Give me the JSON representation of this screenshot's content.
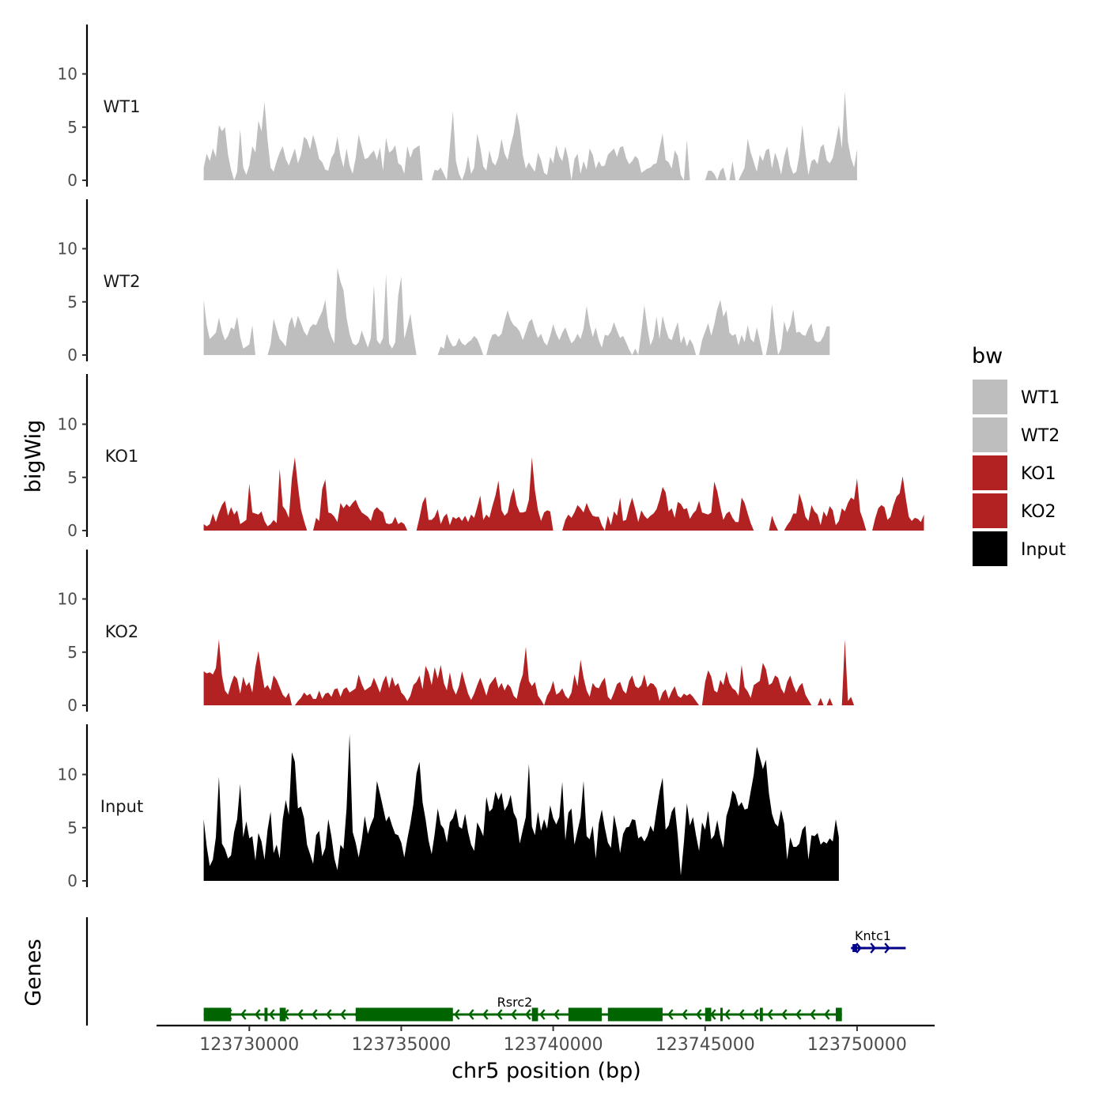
{
  "chart_data": {
    "type": "area",
    "title": "",
    "ylabel": "bigWig",
    "genes_label": "Genes",
    "xlabel": "chr5 position (bp)",
    "xlim": [
      123727000,
      123752500
    ],
    "x_ticks": [
      "123730000",
      "123735000",
      "123740000",
      "123745000",
      "123750000"
    ],
    "x_tick_values": [
      123730000,
      123735000,
      123740000,
      123745000,
      123750000
    ],
    "ylim": [
      0,
      14
    ],
    "y_ticks": [
      "0",
      "5",
      "10"
    ],
    "y_tick_values": [
      0,
      5,
      10
    ],
    "data_start": 123728500,
    "data_step": 100,
    "tracks": [
      {
        "name": "WT1",
        "color": "#bebebe",
        "values": [
          1.2,
          2.5,
          1.8,
          3.0,
          2.2,
          5.2,
          4.6,
          5.0,
          2.4,
          1.0,
          0.0,
          0.8,
          4.8,
          1.2,
          0.5,
          1.4,
          3.2,
          2.6,
          5.6,
          4.6,
          7.4,
          3.8,
          1.2,
          0.8,
          1.8,
          2.6,
          3.2,
          2.0,
          1.4,
          2.2,
          3.0,
          1.6,
          2.4,
          4.1,
          3.8,
          2.9,
          4.3,
          3.3,
          2.0,
          1.7,
          1.0,
          0.9,
          2.1,
          2.6,
          4.1,
          2.3,
          1.2,
          3.0,
          1.4,
          0.6,
          2.1,
          4.3,
          3.1,
          2.0,
          2.1,
          2.5,
          2.8,
          1.9,
          3.1,
          0.9,
          4.0,
          2.6,
          2.8,
          3.3,
          1.6,
          1.4,
          0.6,
          3.2,
          2.1,
          2.9,
          3.1,
          3.3,
          0.0,
          0.0,
          0.0,
          0.0,
          1.0,
          0.9,
          1.2,
          0.6,
          0.0,
          3.2,
          6.5,
          1.8,
          0.6,
          0.0,
          0.8,
          2.3,
          0.6,
          1.2,
          4.4,
          3.1,
          1.3,
          0.9,
          2.8,
          1.7,
          1.4,
          2.2,
          3.9,
          2.5,
          1.9,
          3.3,
          4.4,
          6.4,
          5.0,
          2.4,
          1.1,
          1.7,
          1.2,
          0.8,
          2.6,
          1.9,
          0.7,
          0.5,
          2.2,
          1.6,
          3.3,
          2.3,
          1.8,
          3.2,
          2.0,
          0.0,
          2.0,
          2.5,
          0.6,
          1.8,
          1.0,
          3.0,
          2.4,
          1.1,
          1.8,
          1.3,
          1.4,
          2.4,
          2.7,
          3.0,
          2.2,
          3.1,
          3.2,
          2.1,
          1.5,
          1.8,
          2.3,
          2.0,
          0.7,
          0.9,
          1.1,
          1.2,
          1.5,
          1.6,
          3.0,
          4.4,
          1.9,
          1.7,
          1.1,
          2.8,
          2.3,
          0.5,
          0.0,
          3.8,
          0.0,
          0.0,
          0.0,
          0.0,
          0.0,
          0.0,
          0.9,
          0.9,
          0.6,
          0.0,
          0.9,
          1.2,
          0.0,
          0.0,
          1.8,
          0.0,
          0.0,
          0.6,
          1.2,
          3.9,
          2.6,
          1.7,
          0.8,
          2.4,
          1.8,
          2.8,
          3.0,
          1.1,
          2.6,
          1.8,
          0.5,
          2.2,
          3.2,
          1.4,
          0.6,
          0.8,
          2.4,
          5.2,
          2.6,
          0.5,
          1.8,
          2.0,
          1.5,
          3.1,
          3.4,
          1.9,
          1.6,
          2.1,
          3.6,
          5.2,
          3.0,
          8.4,
          3.6,
          2.1,
          1.2,
          2.9
        ]
      },
      {
        "name": "WT2",
        "color": "#bebebe",
        "values": [
          5.2,
          2.8,
          1.5,
          1.8,
          2.1,
          3.5,
          2.2,
          1.4,
          1.8,
          2.6,
          2.4,
          3.6,
          1.7,
          0.6,
          0.8,
          1.0,
          2.8,
          0.0,
          0.0,
          0.0,
          0.0,
          0.0,
          1.0,
          3.4,
          2.4,
          1.5,
          1.2,
          0.8,
          2.9,
          3.6,
          2.5,
          3.7,
          3.0,
          2.2,
          1.8,
          2.6,
          2.9,
          2.8,
          3.5,
          4.1,
          5.2,
          2.6,
          1.7,
          1.1,
          8.2,
          6.9,
          6.1,
          3.5,
          2.0,
          1.1,
          0.9,
          1.2,
          2.3,
          1.5,
          0.7,
          1.6,
          6.6,
          1.4,
          1.0,
          1.6,
          7.6,
          1.1,
          0.6,
          1.2,
          5.6,
          7.4,
          1.5,
          2.6,
          3.9,
          1.8,
          0.0,
          0.0,
          0.0,
          0.0,
          0.0,
          0.0,
          0.0,
          0.0,
          0.8,
          0.6,
          2.0,
          1.3,
          0.8,
          0.9,
          1.6,
          1.1,
          0.9,
          1.2,
          1.4,
          1.8,
          1.5,
          0.8,
          0.0,
          0.0,
          1.2,
          1.9,
          2.0,
          1.7,
          2.0,
          3.2,
          4.2,
          3.3,
          2.8,
          2.6,
          2.2,
          1.4,
          2.2,
          3.1,
          3.4,
          2.4,
          1.6,
          2.0,
          1.2,
          0.9,
          1.8,
          2.9,
          2.0,
          1.4,
          2.1,
          2.6,
          1.8,
          1.1,
          1.4,
          2.0,
          1.5,
          2.5,
          4.6,
          2.9,
          1.7,
          2.6,
          1.4,
          0.7,
          1.9,
          1.8,
          2.2,
          3.1,
          2.3,
          1.6,
          1.8,
          1.2,
          0.5,
          0.0,
          0.6,
          0.0,
          2.2,
          4.7,
          2.6,
          0.9,
          1.6,
          3.6,
          1.5,
          3.7,
          2.5,
          1.6,
          1.4,
          2.3,
          3.1,
          1.1,
          1.8,
          0.8,
          1.5,
          1.0,
          0.0,
          0.0,
          1.4,
          2.2,
          3.0,
          1.8,
          2.9,
          4.3,
          5.2,
          3.6,
          4.2,
          2.1,
          1.8,
          2.0,
          0.9,
          1.9,
          1.2,
          2.8,
          1.5,
          1.2,
          2.6,
          1.4,
          0.0,
          0.0,
          1.5,
          4.8,
          2.1,
          0.0,
          0.6,
          3.2,
          2.1,
          2.8,
          4.3,
          2.1,
          2.2,
          1.9,
          1.8,
          2.5,
          3.0,
          1.4,
          1.2,
          1.3,
          1.8,
          2.7,
          2.7
        ]
      },
      {
        "name": "KO1",
        "color": "#b22222",
        "values": [
          0.6,
          0.4,
          0.6,
          1.6,
          0.8,
          1.7,
          2.4,
          2.8,
          1.4,
          2.2,
          1.5,
          1.9,
          0.6,
          0.8,
          1.0,
          4.4,
          1.7,
          1.6,
          1.5,
          1.8,
          0.9,
          0.4,
          0.6,
          1.0,
          0.7,
          5.8,
          2.3,
          1.9,
          1.2,
          4.9,
          6.9,
          4.2,
          2.0,
          0.9,
          0.0,
          0.0,
          0.0,
          1.2,
          0.9,
          3.9,
          4.8,
          1.7,
          1.6,
          1.3,
          0.8,
          2.6,
          2.1,
          2.5,
          2.2,
          2.6,
          2.9,
          2.2,
          1.7,
          1.5,
          1.3,
          0.9,
          1.9,
          2.2,
          1.9,
          1.7,
          0.7,
          0.6,
          0.7,
          1.3,
          0.6,
          0.8,
          0.6,
          0.0,
          0.0,
          0.0,
          0.0,
          1.2,
          2.6,
          3.2,
          1.0,
          1.0,
          1.3,
          2.0,
          0.6,
          1.3,
          1.6,
          0.5,
          1.3,
          1.1,
          1.3,
          0.9,
          1.4,
          0.8,
          1.5,
          1.2,
          2.2,
          3.3,
          1.0,
          1.5,
          1.2,
          2.3,
          3.3,
          4.7,
          1.9,
          1.4,
          1.7,
          3.1,
          4.0,
          2.4,
          1.7,
          1.7,
          1.8,
          2.9,
          6.9,
          3.8,
          1.9,
          0.9,
          1.7,
          1.9,
          1.8,
          0.0,
          0.0,
          0.0,
          0.0,
          1.0,
          1.5,
          1.2,
          1.7,
          2.4,
          2.1,
          1.7,
          2.6,
          1.9,
          1.4,
          1.3,
          1.3,
          0.5,
          0.0,
          1.4,
          0.5,
          1.8,
          1.4,
          3.1,
          0.9,
          1.0,
          2.2,
          3.1,
          2.0,
          0.8,
          1.9,
          1.4,
          1.1,
          1.4,
          1.6,
          2.0,
          2.9,
          4.1,
          3.6,
          1.8,
          2.1,
          1.2,
          2.7,
          2.5,
          2.0,
          2.1,
          1.1,
          1.6,
          1.9,
          2.8,
          1.7,
          1.6,
          1.5,
          1.7,
          4.6,
          3.7,
          2.2,
          1.0,
          1.6,
          1.8,
          1.2,
          0.8,
          0.8,
          3.1,
          2.6,
          1.6,
          0.7,
          0.0,
          0.0,
          0.0,
          0.0,
          0.0,
          0.0,
          1.4,
          0.6,
          0.0,
          0.0,
          0.0,
          0.5,
          0.9,
          1.6,
          1.6,
          3.5,
          2.6,
          1.3,
          0.9,
          2.4,
          1.8,
          1.5,
          0.5,
          1.8,
          1.3,
          2.3,
          1.9,
          0.5,
          0.9,
          2.1,
          1.8,
          2.6,
          3.1,
          2.9,
          4.9,
          1.8,
          1.0,
          0.0,
          0.0,
          0.0,
          1.2,
          2.1,
          2.4,
          2.2,
          1.0,
          1.3,
          2.4,
          3.2,
          3.5,
          5.1,
          3.1,
          1.3,
          0.9,
          1.2,
          1.1,
          0.8,
          1.5
        ]
      },
      {
        "name": "KO2",
        "color": "#b22222",
        "values": [
          3.2,
          3.0,
          3.1,
          2.9,
          3.5,
          6.2,
          2.8,
          1.4,
          1.0,
          2.0,
          2.8,
          2.5,
          1.1,
          2.7,
          1.8,
          2.2,
          1.2,
          3.6,
          5.1,
          3.2,
          1.6,
          1.9,
          1.4,
          2.8,
          2.4,
          1.7,
          1.0,
          0.7,
          1.2,
          0.0,
          0.0,
          0.4,
          0.7,
          1.2,
          0.9,
          1.1,
          0.6,
          0.6,
          1.4,
          0.6,
          1.1,
          1.2,
          0.8,
          1.5,
          1.6,
          0.8,
          1.5,
          1.7,
          1.2,
          1.4,
          1.6,
          2.9,
          2.0,
          1.4,
          1.6,
          1.8,
          2.6,
          1.9,
          1.2,
          2.2,
          2.8,
          1.6,
          2.7,
          1.8,
          2.1,
          1.2,
          0.9,
          0.4,
          0.9,
          1.9,
          2.2,
          2.8,
          1.5,
          3.7,
          3.1,
          1.9,
          3.6,
          2.5,
          3.8,
          2.1,
          1.4,
          3.1,
          1.6,
          1.0,
          1.8,
          3.2,
          2.1,
          1.1,
          0.5,
          1.1,
          1.9,
          2.6,
          1.8,
          0.9,
          1.9,
          2.3,
          2.7,
          1.6,
          2.1,
          1.4,
          2.0,
          1.7,
          0.9,
          0.6,
          2.0,
          2.9,
          5.5,
          2.3,
          1.8,
          2.2,
          0.9,
          0.5,
          0.0,
          0.9,
          1.4,
          2.3,
          1.0,
          1.2,
          1.6,
          0.9,
          0.6,
          1.2,
          2.9,
          1.8,
          4.3,
          2.6,
          1.4,
          0.8,
          2.1,
          1.7,
          1.6,
          2.2,
          2.6,
          0.8,
          0.5,
          1.2,
          2.0,
          2.2,
          1.4,
          1.1,
          2.3,
          2.8,
          1.8,
          1.6,
          1.9,
          2.9,
          1.7,
          2.1,
          2.0,
          1.6,
          0.4,
          1.2,
          1.5,
          0.6,
          1.3,
          1.8,
          0.9,
          0.7,
          1.1,
          0.9,
          1.1,
          0.8,
          0.4,
          0.0,
          0.0,
          2.2,
          3.3,
          2.7,
          1.4,
          1.2,
          2.4,
          1.9,
          3.2,
          2.1,
          1.6,
          1.4,
          0.9,
          3.8,
          1.7,
          1.3,
          0.7,
          1.9,
          2.1,
          2.3,
          4.0,
          3.4,
          1.9,
          2.1,
          2.8,
          2.6,
          1.6,
          1.1,
          2.2,
          2.8,
          1.9,
          1.2,
          1.8,
          2.1,
          1.0,
          0.5,
          0.0,
          0.0,
          0.0,
          0.7,
          0.0,
          0.0,
          0.7,
          0.0,
          0.0,
          0.0,
          0.0,
          6.2,
          0.4,
          0.8,
          0.0
        ]
      },
      {
        "name": "Input",
        "color": "#000000",
        "values": [
          5.8,
          3.2,
          1.4,
          2.0,
          4.1,
          9.8,
          3.5,
          3.0,
          2.1,
          2.4,
          4.6,
          5.8,
          9.1,
          4.1,
          5.6,
          4.0,
          4.2,
          1.9,
          4.5,
          3.7,
          2.0,
          4.8,
          6.5,
          2.6,
          3.4,
          2.1,
          5.8,
          7.6,
          6.2,
          12.1,
          11.2,
          6.8,
          7.0,
          5.9,
          3.4,
          2.5,
          1.6,
          4.3,
          4.7,
          2.3,
          3.1,
          5.8,
          4.2,
          2.1,
          1.0,
          3.4,
          3.0,
          6.8,
          13.8,
          4.6,
          3.6,
          2.2,
          3.8,
          6.1,
          4.4,
          5.3,
          6.0,
          9.4,
          8.2,
          6.9,
          5.6,
          6.1,
          5.2,
          4.4,
          4.3,
          3.6,
          2.2,
          3.9,
          5.4,
          7.2,
          10.1,
          11.2,
          7.4,
          5.8,
          3.8,
          2.5,
          4.4,
          6.8,
          5.3,
          4.9,
          3.6,
          5.5,
          5.9,
          6.8,
          5.1,
          4.9,
          6.3,
          4.6,
          3.4,
          2.8,
          5.5,
          4.9,
          4.2,
          7.9,
          6.5,
          6.8,
          8.4,
          7.6,
          8.3,
          6.6,
          7.1,
          8.1,
          6.4,
          5.8,
          3.5,
          4.8,
          6.0,
          11.0,
          5.1,
          4.3,
          6.5,
          4.7,
          5.8,
          4.9,
          7.1,
          5.9,
          5.3,
          6.0,
          9.3,
          3.8,
          6.4,
          6.8,
          3.4,
          4.7,
          6.0,
          9.4,
          4.2,
          3.9,
          5.2,
          2.1,
          5.4,
          6.7,
          5.0,
          3.6,
          3.1,
          6.2,
          4.8,
          2.6,
          4.4,
          5.0,
          5.1,
          5.8,
          5.7,
          4.0,
          4.2,
          3.7,
          4.2,
          5.2,
          4.6,
          6.6,
          8.4,
          9.7,
          4.8,
          5.2,
          6.5,
          7.0,
          4.2,
          0.5,
          3.6,
          7.3,
          5.2,
          6.0,
          4.3,
          2.8,
          5.5,
          4.8,
          6.6,
          3.9,
          4.3,
          5.7,
          4.1,
          3.1,
          6.1,
          7.0,
          8.5,
          8.1,
          7.0,
          7.4,
          6.7,
          6.8,
          8.4,
          10.0,
          12.6,
          11.6,
          10.5,
          11.4,
          8.2,
          6.3,
          5.4,
          5.1,
          6.7,
          5.4,
          2.0,
          4.1,
          3.2,
          3.2,
          3.5,
          4.8,
          5.2,
          2.0,
          4.3,
          4.2,
          4.5,
          3.4,
          3.7,
          3.5,
          4.0,
          3.7,
          5.8,
          4.1
        ]
      }
    ],
    "genes": [
      {
        "name": "Rsrc2",
        "color": "#006400",
        "strand": "-",
        "start": 123728500,
        "end": 123749500,
        "exons": [
          [
            123728500,
            123729400
          ],
          [
            123730500,
            123730600
          ],
          [
            123731000,
            123731200
          ],
          [
            123733500,
            123736700
          ],
          [
            123739300,
            123739500
          ],
          [
            123740500,
            123741600
          ],
          [
            123741800,
            123743600
          ],
          [
            123745000,
            123745200
          ],
          [
            123745500,
            123745550
          ],
          [
            123746800,
            123746900
          ],
          [
            123749300,
            123749500
          ]
        ]
      },
      {
        "name": "Kntc1",
        "color": "#00008b",
        "strand": "+",
        "start": 123749800,
        "end": 123751600,
        "exons": [
          [
            123749850,
            123750000
          ]
        ]
      }
    ],
    "legend": {
      "title": "bw",
      "position": "right",
      "items": [
        {
          "label": "WT1",
          "color": "#bebebe"
        },
        {
          "label": "WT2",
          "color": "#bebebe"
        },
        {
          "label": "KO1",
          "color": "#b22222"
        },
        {
          "label": "KO2",
          "color": "#b22222"
        },
        {
          "label": "Input",
          "color": "#000000"
        }
      ]
    }
  }
}
